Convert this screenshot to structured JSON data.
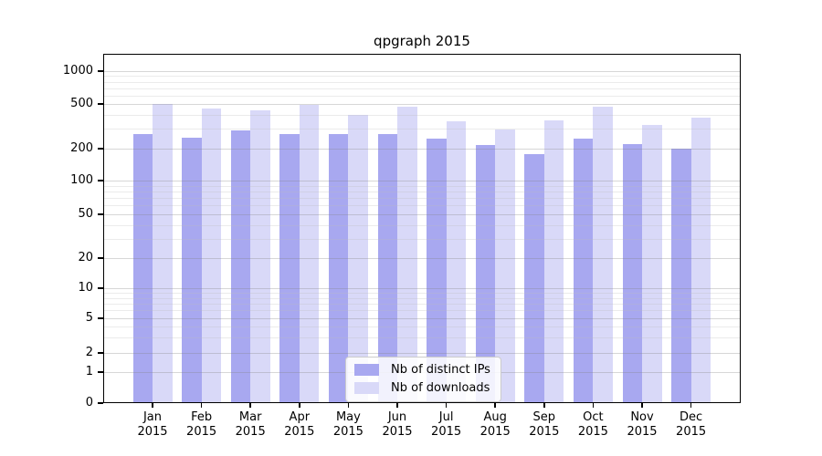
{
  "chart_data": {
    "type": "bar",
    "title": "qpgraph 2015",
    "categories": [
      "Jan",
      "Feb",
      "Mar",
      "Apr",
      "May",
      "Jun",
      "Jul",
      "Aug",
      "Sep",
      "Oct",
      "Nov",
      "Dec"
    ],
    "x_tick_second_line": "2015",
    "series": [
      {
        "name": "Nb of distinct IPs",
        "color": "#a8a8f0",
        "values": [
          270,
          250,
          290,
          270,
          270,
          270,
          245,
          215,
          178,
          245,
          220,
          200
        ]
      },
      {
        "name": "Nb of downloads",
        "color": "#d9d9f8",
        "values": [
          500,
          455,
          440,
          495,
          400,
          475,
          350,
          295,
          355,
          475,
          325,
          380
        ]
      }
    ],
    "y_axis": {
      "ticks": [
        0,
        1,
        2,
        5,
        10,
        20,
        50,
        100,
        200,
        500,
        1000
      ],
      "scale": "symlog",
      "range": [
        0,
        1000
      ]
    },
    "grid": true,
    "legend_position": "lower center"
  }
}
